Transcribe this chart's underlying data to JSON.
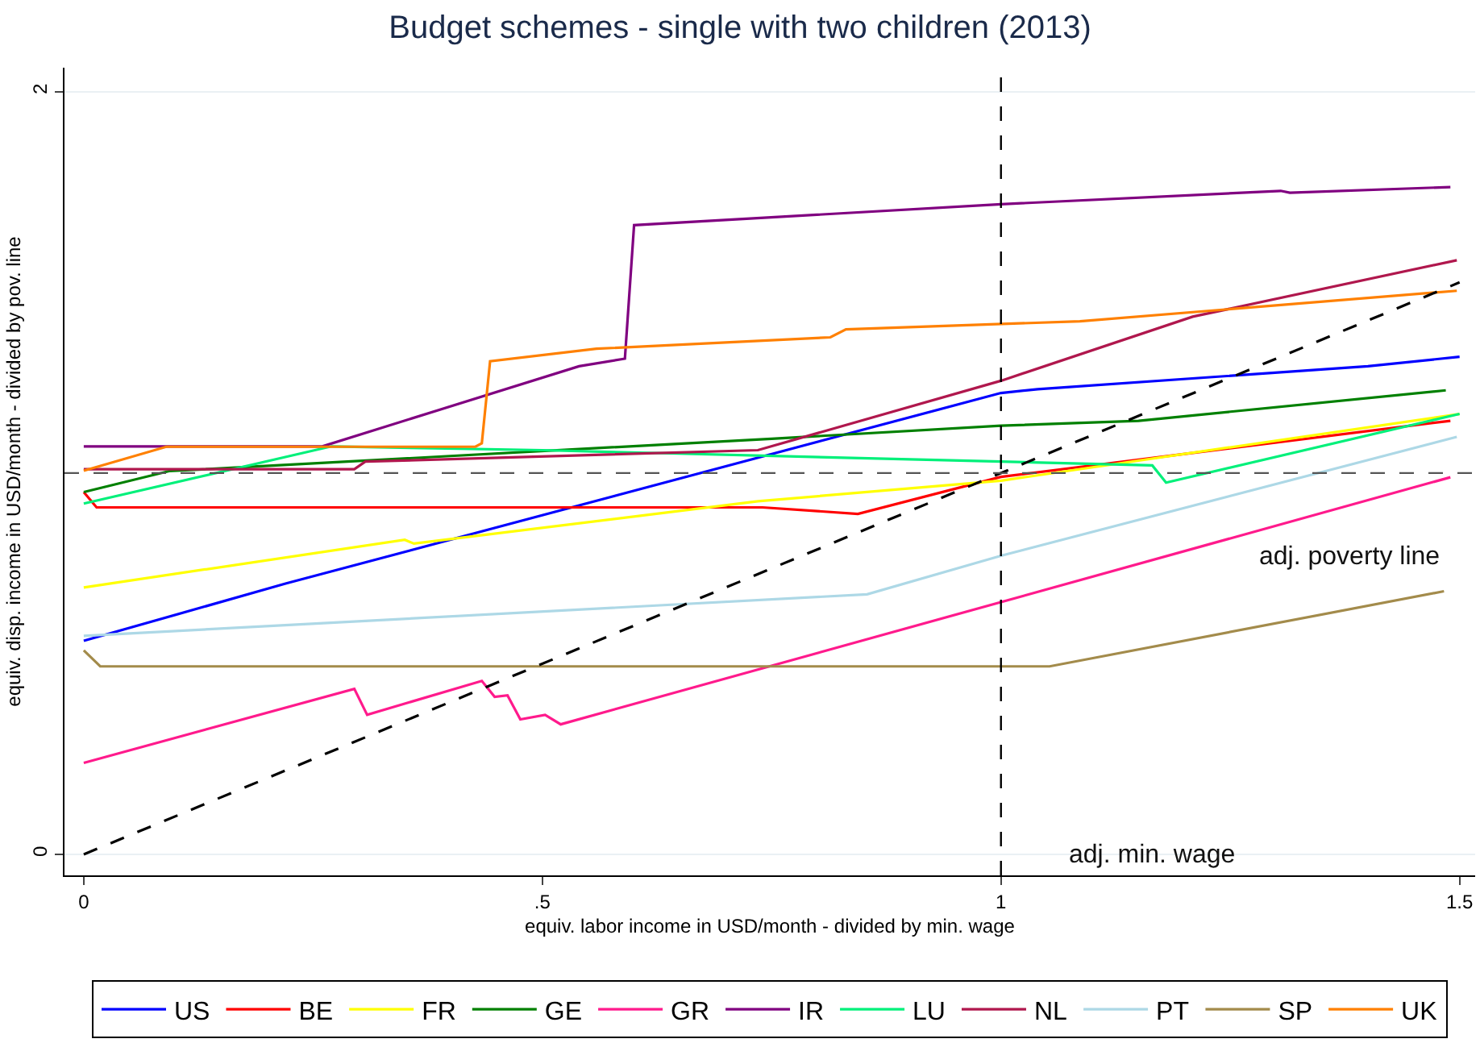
{
  "chart_data": {
    "type": "line",
    "title": "Budget schemes - single with two children (2013)",
    "xlabel": "equiv. labor income in USD/month - divided by min. wage",
    "ylabel": "equiv. disp. income in USD/month - divided by pov. line",
    "xlim": [
      -0.021,
      1.517
    ],
    "xticks": [
      0,
      {
        "value": 0.5,
        "label": ".5"
      },
      1,
      1.5
    ],
    "ylim": [
      -0.055,
      2.063
    ],
    "yticks": [
      0,
      2
    ],
    "grid": "y",
    "legend": "bottom",
    "marker": "none",
    "line_style": "solid",
    "ref_lines": [
      {
        "axis": "y",
        "value": 1,
        "label": "adj. poverty line",
        "color": "#555555",
        "line_style": "dashed"
      },
      {
        "axis": "x",
        "value": 1,
        "label": "adj. min. wage",
        "color": "#000000",
        "line_style": "dashed"
      }
    ],
    "series": [
      {
        "name": "US",
        "color": "#0000ff",
        "x": [
          0,
          0.22,
          1,
          1.04,
          1.4,
          1.5
        ],
        "values": [
          0.56,
          0.71,
          1.21,
          1.22,
          1.28,
          1.305
        ]
      },
      {
        "name": "BE",
        "color": "#ff0000",
        "x": [
          0,
          0.014,
          0.74,
          0.844,
          1,
          1.49
        ],
        "values": [
          0.95,
          0.91,
          0.91,
          0.893,
          0.99,
          1.137
        ]
      },
      {
        "name": "FR",
        "color": "#ffff00",
        "x": [
          0,
          0.35,
          0.36,
          0.735,
          1,
          1.5
        ],
        "values": [
          0.7,
          0.825,
          0.815,
          0.926,
          0.98,
          1.155
        ]
      },
      {
        "name": "GE",
        "color": "#008000",
        "x": [
          0,
          0.093,
          0.75,
          1,
          1.15,
          1.485
        ],
        "values": [
          0.95,
          1.005,
          1.09,
          1.124,
          1.137,
          1.217
        ]
      },
      {
        "name": "GR",
        "color": "#ff1a8c",
        "x": [
          0,
          0.295,
          0.309,
          0.434,
          0.448,
          0.462,
          0.476,
          0.503,
          0.52,
          1.49
        ],
        "values": [
          0.24,
          0.434,
          0.366,
          0.455,
          0.413,
          0.417,
          0.354,
          0.366,
          0.341,
          0.989
        ]
      },
      {
        "name": "IR",
        "color": "#800080",
        "x": [
          0,
          0.26,
          0.54,
          0.59,
          0.6,
          1,
          1.305,
          1.315,
          1.49
        ],
        "values": [
          1.07,
          1.07,
          1.28,
          1.3,
          1.65,
          1.705,
          1.74,
          1.735,
          1.75
        ]
      },
      {
        "name": "LU",
        "color": "#00f07a",
        "x": [
          0,
          0.27,
          0.5,
          1,
          1.165,
          1.18,
          1.5
        ],
        "values": [
          0.92,
          1.07,
          1.06,
          1.03,
          1.02,
          0.975,
          1.155
        ]
      },
      {
        "name": "NL",
        "color": "#b0174d",
        "x": [
          0,
          0.295,
          0.307,
          0.735,
          1,
          1.209,
          1.497
        ],
        "values": [
          1.01,
          1.01,
          1.03,
          1.06,
          1.242,
          1.41,
          1.558
        ]
      },
      {
        "name": "PT",
        "color": "#add8e6",
        "x": [
          0,
          0.854,
          1,
          1.497
        ],
        "values": [
          0.573,
          0.682,
          0.783,
          1.095
        ]
      },
      {
        "name": "SP",
        "color": "#a38b4b",
        "x": [
          0,
          0.018,
          1.053,
          1.483
        ],
        "values": [
          0.535,
          0.493,
          0.493,
          0.69
        ]
      },
      {
        "name": "UK",
        "color": "#ff8000",
        "x": [
          0,
          0.09,
          0.427,
          0.434,
          0.443,
          0.559,
          0.814,
          0.831,
          1.086,
          1.497
        ],
        "values": [
          1.006,
          1.069,
          1.069,
          1.078,
          1.293,
          1.326,
          1.356,
          1.377,
          1.398,
          1.478
        ]
      },
      {
        "color": "#000000",
        "line_style": "dashed",
        "x": [
          0,
          1.5
        ],
        "values": [
          0,
          1.5
        ]
      }
    ]
  }
}
